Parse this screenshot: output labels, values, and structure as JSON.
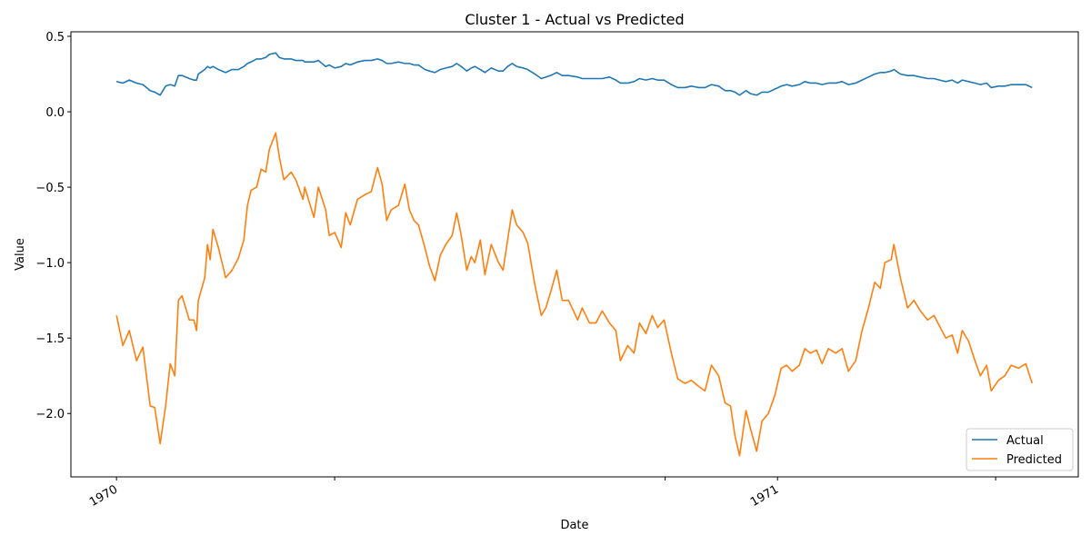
{
  "chart_data": {
    "type": "line",
    "title": "Cluster 1 - Actual vs Predicted",
    "xlabel": "Date",
    "ylabel": "Value",
    "x": [
      1970.0,
      1970.0096,
      1970.0193,
      1970.0303,
      1970.0399,
      1970.0509,
      1970.0578,
      1970.066,
      1970.0743,
      1970.0812,
      1970.0881,
      1970.0936,
      1970.0991,
      1970.1101,
      1970.117,
      1970.1211,
      1970.1238,
      1970.1335,
      1970.1376,
      1970.1417,
      1970.1459,
      1970.1541,
      1970.1651,
      1970.1748,
      1970.1844,
      1970.1926,
      1970.1981,
      1970.2036,
      1970.2119,
      1970.2188,
      1970.2257,
      1970.2312,
      1970.2408,
      1970.2463,
      1970.2532,
      1970.2642,
      1970.2711,
      1970.2821,
      1970.2848,
      1970.2986,
      1970.3054,
      1970.3164,
      1970.3219,
      1970.3302,
      1970.3399,
      1970.3468,
      1970.3536,
      1970.3646,
      1970.3756,
      1970.3853,
      1970.3949,
      1970.4018,
      1970.4087,
      1970.4155,
      1970.4266,
      1970.4362,
      1970.4431,
      1970.45,
      1970.4568,
      1970.4665,
      1970.4734,
      1970.4816,
      1970.4899,
      1970.4981,
      1970.5078,
      1970.5146,
      1970.5215,
      1970.5298,
      1970.5366,
      1970.5421,
      1970.5504,
      1970.5573,
      1970.5669,
      1970.5779,
      1970.5848,
      1970.5917,
      1970.5986,
      1970.6054,
      1970.6151,
      1970.622,
      1970.633,
      1970.6426,
      1970.6495,
      1970.6564,
      1970.666,
      1970.6743,
      1970.6839,
      1970.6977,
      1970.7045,
      1970.7155,
      1970.7252,
      1970.7348,
      1970.7458,
      1970.7554,
      1970.7623,
      1970.7733,
      1970.783,
      1970.7912,
      1970.8009,
      1970.8105,
      1970.8187,
      1970.8284,
      1970.8394,
      1970.849,
      1970.86,
      1970.8697,
      1970.8807,
      1970.8903,
      1970.9,
      1970.911,
      1970.9206,
      1970.9289,
      1970.9357,
      1970.9426,
      1970.9523,
      1970.9591,
      1970.9684,
      1970.9766,
      1970.9862,
      1970.9959,
      1971.0055,
      1971.0138,
      1971.022,
      1971.033,
      1971.0413,
      1971.0495,
      1971.0591,
      1971.0674,
      1971.077,
      1971.088,
      1971.0977,
      1971.1073,
      1971.1183,
      1971.1279,
      1971.1376,
      1971.1472,
      1971.1555,
      1971.1624,
      1971.172,
      1971.1761,
      1971.1858,
      1971.1968,
      1971.2064,
      1971.2161,
      1971.2271,
      1971.2367,
      1971.245,
      1971.2546,
      1971.2643,
      1971.2725,
      1971.2794,
      1971.289,
      1971.2987,
      1971.3069,
      1971.3164,
      1971.3233,
      1971.3343,
      1971.3439,
      1971.3536,
      1971.3646,
      1971.3756,
      1971.3852
    ],
    "series": [
      {
        "name": "Actual",
        "color": "#1f77b4",
        "values": [
          0.2,
          0.19,
          0.21,
          0.19,
          0.18,
          0.14,
          0.13,
          0.11,
          0.17,
          0.18,
          0.17,
          0.24,
          0.24,
          0.22,
          0.21,
          0.21,
          0.25,
          0.28,
          0.3,
          0.29,
          0.3,
          0.28,
          0.26,
          0.28,
          0.28,
          0.3,
          0.32,
          0.33,
          0.35,
          0.35,
          0.36,
          0.38,
          0.39,
          0.36,
          0.35,
          0.35,
          0.34,
          0.34,
          0.33,
          0.33,
          0.34,
          0.3,
          0.31,
          0.29,
          0.3,
          0.32,
          0.31,
          0.33,
          0.34,
          0.34,
          0.35,
          0.34,
          0.32,
          0.32,
          0.33,
          0.32,
          0.32,
          0.31,
          0.31,
          0.28,
          0.27,
          0.26,
          0.28,
          0.29,
          0.3,
          0.32,
          0.3,
          0.27,
          0.29,
          0.3,
          0.28,
          0.26,
          0.29,
          0.27,
          0.27,
          0.3,
          0.32,
          0.3,
          0.29,
          0.28,
          0.25,
          0.22,
          0.23,
          0.24,
          0.26,
          0.24,
          0.24,
          0.23,
          0.22,
          0.22,
          0.22,
          0.22,
          0.23,
          0.21,
          0.19,
          0.19,
          0.2,
          0.22,
          0.21,
          0.22,
          0.21,
          0.21,
          0.18,
          0.16,
          0.16,
          0.17,
          0.16,
          0.16,
          0.18,
          0.17,
          0.14,
          0.14,
          0.13,
          0.11,
          0.14,
          0.12,
          0.11,
          0.13,
          0.13,
          0.15,
          0.17,
          0.18,
          0.17,
          0.18,
          0.2,
          0.19,
          0.19,
          0.18,
          0.19,
          0.19,
          0.2,
          0.18,
          0.19,
          0.21,
          0.23,
          0.25,
          0.26,
          0.26,
          0.27,
          0.28,
          0.25,
          0.24,
          0.24,
          0.23,
          0.22,
          0.22,
          0.21,
          0.2,
          0.21,
          0.19,
          0.21,
          0.2,
          0.19,
          0.18,
          0.19,
          0.16,
          0.17,
          0.17,
          0.18,
          0.18,
          0.18,
          0.16
        ]
      },
      {
        "name": "Predicted",
        "color": "#ff7f0e",
        "values": [
          -1.35,
          -1.55,
          -1.45,
          -1.65,
          -1.56,
          -1.95,
          -1.96,
          -2.2,
          -1.95,
          -1.67,
          -1.75,
          -1.25,
          -1.22,
          -1.38,
          -1.38,
          -1.45,
          -1.25,
          -1.1,
          -0.88,
          -0.98,
          -0.78,
          -0.9,
          -1.1,
          -1.05,
          -0.97,
          -0.85,
          -0.62,
          -0.52,
          -0.5,
          -0.38,
          -0.4,
          -0.25,
          -0.14,
          -0.3,
          -0.45,
          -0.4,
          -0.45,
          -0.58,
          -0.5,
          -0.7,
          -0.5,
          -0.65,
          -0.82,
          -0.8,
          -0.9,
          -0.67,
          -0.75,
          -0.58,
          -0.55,
          -0.53,
          -0.37,
          -0.48,
          -0.72,
          -0.65,
          -0.62,
          -0.48,
          -0.65,
          -0.72,
          -0.75,
          -0.9,
          -1.02,
          -1.12,
          -0.95,
          -0.88,
          -0.82,
          -0.67,
          -0.82,
          -1.05,
          -0.96,
          -1.0,
          -0.85,
          -1.08,
          -0.88,
          -1.0,
          -1.05,
          -0.85,
          -0.65,
          -0.75,
          -0.8,
          -0.87,
          -1.15,
          -1.35,
          -1.3,
          -1.2,
          -1.05,
          -1.25,
          -1.25,
          -1.38,
          -1.3,
          -1.4,
          -1.4,
          -1.32,
          -1.4,
          -1.45,
          -1.65,
          -1.55,
          -1.6,
          -1.4,
          -1.47,
          -1.35,
          -1.43,
          -1.38,
          -1.6,
          -1.77,
          -1.8,
          -1.78,
          -1.82,
          -1.85,
          -1.68,
          -1.75,
          -1.93,
          -1.95,
          -2.15,
          -2.28,
          -1.98,
          -2.1,
          -2.25,
          -2.05,
          -2.0,
          -1.88,
          -1.7,
          -1.68,
          -1.72,
          -1.68,
          -1.57,
          -1.6,
          -1.58,
          -1.67,
          -1.57,
          -1.6,
          -1.57,
          -1.72,
          -1.65,
          -1.45,
          -1.3,
          -1.13,
          -1.17,
          -1.0,
          -0.98,
          -0.88,
          -1.1,
          -1.3,
          -1.25,
          -1.32,
          -1.38,
          -1.35,
          -1.42,
          -1.5,
          -1.48,
          -1.6,
          -1.45,
          -1.52,
          -1.65,
          -1.75,
          -1.68,
          -1.85,
          -1.78,
          -1.75,
          -1.68,
          -1.7,
          -1.67,
          -1.8
        ]
      }
    ],
    "xlim": [
      1969.931,
      1971.455
    ],
    "xticks": [
      1970,
      1971
    ],
    "xticks_minor": [
      1970.33,
      1970.83,
      1971.33
    ],
    "ylim": [
      -2.42,
      0.53
    ],
    "yticks": [
      {
        "value": -2,
        "label": "−2.0"
      },
      {
        "value": -1.5,
        "label": "−1.5"
      },
      {
        "value": -1,
        "label": "−1.0"
      },
      {
        "value": -0.5,
        "label": "−0.5"
      },
      {
        "value": 0,
        "label": "0.0"
      },
      0.5
    ],
    "grid": false,
    "legend": "lower right"
  }
}
